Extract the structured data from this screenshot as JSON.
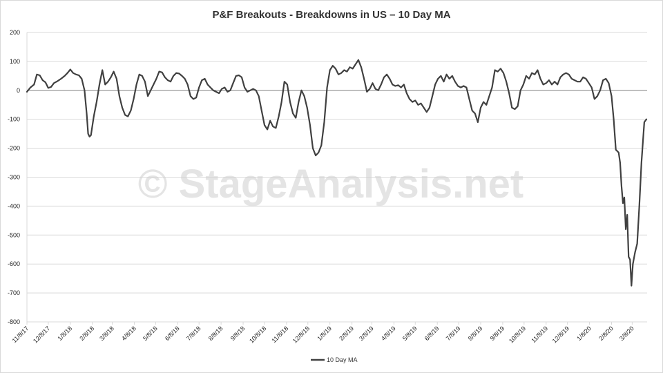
{
  "chart_data": {
    "type": "line",
    "title": "P&F Breakouts - Breakdowns in US – 10 Day MA",
    "xlabel": "",
    "ylabel": "",
    "ylim": [
      -800,
      200
    ],
    "yticks": [
      200,
      100,
      0,
      -100,
      -200,
      -300,
      -400,
      -500,
      -600,
      -700,
      -800
    ],
    "x_tick_labels": [
      "11/8/17",
      "12/8/17",
      "1/8/18",
      "2/8/18",
      "3/8/18",
      "4/8/18",
      "5/8/18",
      "6/8/18",
      "7/8/18",
      "8/8/18",
      "9/8/18",
      "10/8/18",
      "11/8/18",
      "12/8/18",
      "1/8/19",
      "2/8/19",
      "3/8/19",
      "4/8/19",
      "5/8/19",
      "6/8/19",
      "7/8/19",
      "8/8/19",
      "9/8/19",
      "10/8/19",
      "11/8/19",
      "12/8/19",
      "1/8/20",
      "2/8/20",
      "3/8/20"
    ],
    "x_range": [
      "11/8/17",
      "3/29/20"
    ],
    "grid": "horizontal",
    "legend_position": "bottom",
    "watermark": "© StageAnalysis.net",
    "series": [
      {
        "name": "10 Day MA",
        "color": "#404040",
        "points": [
          [
            "11/8/17",
            -5
          ],
          [
            "11/13/17",
            10
          ],
          [
            "11/18/17",
            20
          ],
          [
            "11/22/17",
            55
          ],
          [
            "11/26/17",
            52
          ],
          [
            "11/30/17",
            35
          ],
          [
            "12/4/17",
            28
          ],
          [
            "12/8/17",
            8
          ],
          [
            "12/12/17",
            12
          ],
          [
            "12/16/17",
            25
          ],
          [
            "12/21/17",
            32
          ],
          [
            "12/26/17",
            40
          ],
          [
            "12/31/17",
            50
          ],
          [
            "1/4/18",
            60
          ],
          [
            "1/8/18",
            72
          ],
          [
            "1/12/18",
            60
          ],
          [
            "1/16/18",
            55
          ],
          [
            "1/20/18",
            52
          ],
          [
            "1/24/18",
            40
          ],
          [
            "1/28/18",
            0
          ],
          [
            "1/31/18",
            -80
          ],
          [
            "2/2/18",
            -150
          ],
          [
            "2/4/18",
            -160
          ],
          [
            "2/6/18",
            -155
          ],
          [
            "2/10/18",
            -90
          ],
          [
            "2/14/18",
            -40
          ],
          [
            "2/18/18",
            20
          ],
          [
            "2/22/18",
            70
          ],
          [
            "2/26/18",
            20
          ],
          [
            "3/2/18",
            30
          ],
          [
            "3/6/18",
            45
          ],
          [
            "3/10/18",
            65
          ],
          [
            "3/14/18",
            40
          ],
          [
            "3/18/18",
            -20
          ],
          [
            "3/22/18",
            -60
          ],
          [
            "3/26/18",
            -85
          ],
          [
            "3/30/18",
            -90
          ],
          [
            "4/3/18",
            -70
          ],
          [
            "4/7/18",
            -30
          ],
          [
            "4/11/18",
            20
          ],
          [
            "4/15/18",
            55
          ],
          [
            "4/19/18",
            50
          ],
          [
            "4/23/18",
            30
          ],
          [
            "4/27/18",
            -20
          ],
          [
            "5/1/18",
            0
          ],
          [
            "5/5/18",
            20
          ],
          [
            "5/9/18",
            40
          ],
          [
            "5/13/18",
            65
          ],
          [
            "5/17/18",
            62
          ],
          [
            "5/21/18",
            45
          ],
          [
            "5/25/18",
            35
          ],
          [
            "5/29/18",
            30
          ],
          [
            "6/2/18",
            50
          ],
          [
            "6/6/18",
            60
          ],
          [
            "6/10/18",
            58
          ],
          [
            "6/14/18",
            50
          ],
          [
            "6/18/18",
            40
          ],
          [
            "6/22/18",
            20
          ],
          [
            "6/26/18",
            -20
          ],
          [
            "6/30/18",
            -30
          ],
          [
            "7/4/18",
            -25
          ],
          [
            "7/8/18",
            10
          ],
          [
            "7/12/18",
            35
          ],
          [
            "7/16/18",
            40
          ],
          [
            "7/20/18",
            20
          ],
          [
            "7/24/18",
            10
          ],
          [
            "7/28/18",
            0
          ],
          [
            "8/1/18",
            -5
          ],
          [
            "8/5/18",
            -10
          ],
          [
            "8/9/18",
            5
          ],
          [
            "8/13/18",
            10
          ],
          [
            "8/17/18",
            -5
          ],
          [
            "8/21/18",
            0
          ],
          [
            "8/25/18",
            25
          ],
          [
            "8/29/18",
            50
          ],
          [
            "9/2/18",
            52
          ],
          [
            "9/6/18",
            45
          ],
          [
            "9/10/18",
            10
          ],
          [
            "9/14/18",
            -5
          ],
          [
            "9/18/18",
            0
          ],
          [
            "9/22/18",
            5
          ],
          [
            "9/26/18",
            0
          ],
          [
            "9/30/18",
            -20
          ],
          [
            "10/4/18",
            -70
          ],
          [
            "10/8/18",
            -120
          ],
          [
            "10/12/18",
            -135
          ],
          [
            "10/16/18",
            -105
          ],
          [
            "10/20/18",
            -125
          ],
          [
            "10/24/18",
            -130
          ],
          [
            "10/28/18",
            -90
          ],
          [
            "11/1/18",
            -40
          ],
          [
            "11/5/18",
            30
          ],
          [
            "11/9/18",
            20
          ],
          [
            "11/13/18",
            -40
          ],
          [
            "11/17/18",
            -80
          ],
          [
            "11/21/18",
            -95
          ],
          [
            "11/25/18",
            -40
          ],
          [
            "11/29/18",
            0
          ],
          [
            "12/3/18",
            -20
          ],
          [
            "12/7/18",
            -60
          ],
          [
            "12/11/18",
            -120
          ],
          [
            "12/15/18",
            -200
          ],
          [
            "12/19/18",
            -225
          ],
          [
            "12/23/18",
            -215
          ],
          [
            "12/27/18",
            -190
          ],
          [
            "12/31/18",
            -110
          ],
          [
            "1/4/19",
            10
          ],
          [
            "1/8/19",
            70
          ],
          [
            "1/12/19",
            85
          ],
          [
            "1/16/19",
            75
          ],
          [
            "1/20/19",
            55
          ],
          [
            "1/24/19",
            60
          ],
          [
            "1/28/19",
            70
          ],
          [
            "2/1/19",
            65
          ],
          [
            "2/5/19",
            80
          ],
          [
            "2/9/19",
            75
          ],
          [
            "2/13/19",
            90
          ],
          [
            "2/17/19",
            105
          ],
          [
            "2/21/19",
            80
          ],
          [
            "2/25/19",
            40
          ],
          [
            "3/1/19",
            -5
          ],
          [
            "3/5/19",
            5
          ],
          [
            "3/9/19",
            25
          ],
          [
            "3/13/19",
            5
          ],
          [
            "3/17/19",
            0
          ],
          [
            "3/21/19",
            20
          ],
          [
            "3/25/19",
            45
          ],
          [
            "3/29/19",
            55
          ],
          [
            "4/2/19",
            40
          ],
          [
            "4/6/19",
            20
          ],
          [
            "4/10/19",
            15
          ],
          [
            "4/14/19",
            18
          ],
          [
            "4/18/19",
            10
          ],
          [
            "4/22/19",
            20
          ],
          [
            "4/26/19",
            -10
          ],
          [
            "4/30/19",
            -30
          ],
          [
            "5/4/19",
            -40
          ],
          [
            "5/8/19",
            -35
          ],
          [
            "5/12/19",
            -50
          ],
          [
            "5/16/19",
            -45
          ],
          [
            "5/20/19",
            -60
          ],
          [
            "5/24/19",
            -75
          ],
          [
            "5/28/19",
            -60
          ],
          [
            "6/1/19",
            -20
          ],
          [
            "6/5/19",
            20
          ],
          [
            "6/9/19",
            40
          ],
          [
            "6/13/19",
            50
          ],
          [
            "6/17/19",
            30
          ],
          [
            "6/21/19",
            55
          ],
          [
            "6/25/19",
            40
          ],
          [
            "6/29/19",
            50
          ],
          [
            "7/3/19",
            30
          ],
          [
            "7/7/19",
            15
          ],
          [
            "7/11/19",
            10
          ],
          [
            "7/15/19",
            15
          ],
          [
            "7/19/19",
            10
          ],
          [
            "7/23/19",
            -30
          ],
          [
            "7/27/19",
            -70
          ],
          [
            "7/31/19",
            -80
          ],
          [
            "8/4/19",
            -110
          ],
          [
            "8/8/19",
            -60
          ],
          [
            "8/12/19",
            -40
          ],
          [
            "8/16/19",
            -50
          ],
          [
            "8/20/19",
            -20
          ],
          [
            "8/24/19",
            10
          ],
          [
            "8/28/19",
            70
          ],
          [
            "9/1/19",
            65
          ],
          [
            "9/5/19",
            75
          ],
          [
            "9/9/19",
            60
          ],
          [
            "9/13/19",
            30
          ],
          [
            "9/17/19",
            -10
          ],
          [
            "9/21/19",
            -60
          ],
          [
            "9/25/19",
            -65
          ],
          [
            "9/29/19",
            -55
          ],
          [
            "10/3/19",
            0
          ],
          [
            "10/7/19",
            20
          ],
          [
            "10/11/19",
            50
          ],
          [
            "10/15/19",
            40
          ],
          [
            "10/19/19",
            60
          ],
          [
            "10/23/19",
            55
          ],
          [
            "10/27/19",
            70
          ],
          [
            "10/31/19",
            40
          ],
          [
            "11/4/19",
            20
          ],
          [
            "11/8/19",
            25
          ],
          [
            "11/12/19",
            35
          ],
          [
            "11/16/19",
            20
          ],
          [
            "11/20/19",
            30
          ],
          [
            "11/24/19",
            20
          ],
          [
            "11/28/19",
            45
          ],
          [
            "12/2/19",
            55
          ],
          [
            "12/6/19",
            60
          ],
          [
            "12/10/19",
            55
          ],
          [
            "12/14/19",
            40
          ],
          [
            "12/18/19",
            35
          ],
          [
            "12/22/19",
            30
          ],
          [
            "12/26/19",
            30
          ],
          [
            "12/30/19",
            45
          ],
          [
            "1/3/20",
            40
          ],
          [
            "1/7/20",
            25
          ],
          [
            "1/11/20",
            10
          ],
          [
            "1/15/20",
            -30
          ],
          [
            "1/19/20",
            -20
          ],
          [
            "1/23/20",
            0
          ],
          [
            "1/27/20",
            35
          ],
          [
            "1/31/20",
            40
          ],
          [
            "2/4/20",
            25
          ],
          [
            "2/8/20",
            -20
          ],
          [
            "2/11/20",
            -100
          ],
          [
            "2/14/20",
            -205
          ],
          [
            "2/18/20",
            -215
          ],
          [
            "2/20/20",
            -250
          ],
          [
            "2/22/20",
            -330
          ],
          [
            "2/24/20",
            -390
          ],
          [
            "2/26/20",
            -370
          ],
          [
            "2/28/20",
            -480
          ],
          [
            "3/1/20",
            -430
          ],
          [
            "3/3/20",
            -575
          ],
          [
            "3/5/20",
            -585
          ],
          [
            "3/7/20",
            -675
          ],
          [
            "3/9/20",
            -600
          ],
          [
            "3/12/20",
            -560
          ],
          [
            "3/15/20",
            -530
          ],
          [
            "3/18/20",
            -400
          ],
          [
            "3/21/20",
            -250
          ],
          [
            "3/25/20",
            -110
          ],
          [
            "3/28/20",
            -100
          ]
        ]
      }
    ]
  }
}
